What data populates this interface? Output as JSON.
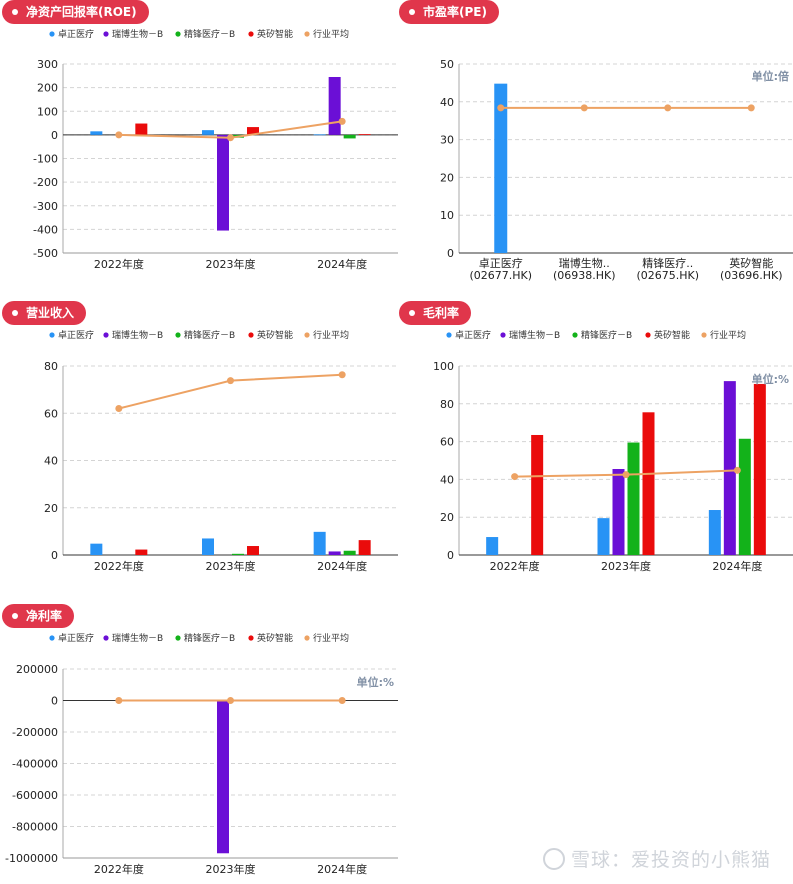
{
  "legend": [
    {
      "name": "卓正医疗",
      "color": "#2893f5"
    },
    {
      "name": "瑞博生物－B",
      "color": "#6b0fd6"
    },
    {
      "name": "精锋医疗－B",
      "color": "#13b21a"
    },
    {
      "name": "英矽智能",
      "color": "#ea0b0b"
    },
    {
      "name": "行业平均",
      "color": "#eda263"
    }
  ],
  "watermark": "雪球：爱投资的小熊猫",
  "chart_data": [
    {
      "id": "roe",
      "title": "净资产回报率(ROE)",
      "type": "bar",
      "unit_label": "",
      "categories": [
        "2022年度",
        "2023年度",
        "2024年度"
      ],
      "ylim": [
        -500,
        300
      ],
      "yticks": [
        "300",
        "200",
        "100",
        "0",
        "-100",
        "-200",
        "-300",
        "-400",
        "-500"
      ],
      "series": [
        {
          "name": "卓正医疗",
          "values": [
            15,
            20,
            2
          ]
        },
        {
          "name": "瑞博生物－B",
          "values": [
            null,
            -405,
            245
          ]
        },
        {
          "name": "精锋医疗－B",
          "values": [
            null,
            -12,
            -15
          ]
        },
        {
          "name": "英矽智能",
          "values": [
            48,
            33,
            3
          ]
        }
      ],
      "line": {
        "name": "行业平均",
        "values": [
          0,
          -12,
          57
        ]
      }
    },
    {
      "id": "pe",
      "title": "市盈率(PE)",
      "type": "bar",
      "unit_label": "单位:倍",
      "categories": [
        [
          "卓正医疗",
          "(02677.HK)"
        ],
        [
          "瑞博生物..",
          "(06938.HK)"
        ],
        [
          "精锋医疗..",
          "(02675.HK)"
        ],
        [
          "英矽智能",
          "(03696.HK)"
        ]
      ],
      "ylim": [
        0,
        50
      ],
      "yticks": [
        "50",
        "40",
        "30",
        "20",
        "10",
        "0"
      ],
      "values": [
        44.8,
        null,
        null,
        null
      ],
      "line": {
        "name": "行业平均",
        "values": [
          38.4,
          38.4,
          38.4,
          38.4
        ]
      }
    },
    {
      "id": "revenue",
      "title": "营业收入",
      "type": "bar",
      "unit_label": "",
      "categories": [
        "2022年度",
        "2023年度",
        "2024年度"
      ],
      "ylim": [
        0,
        80
      ],
      "yticks": [
        "80",
        "60",
        "40",
        "20",
        "0"
      ],
      "series": [
        {
          "name": "卓正医疗",
          "values": [
            4.8,
            7.0,
            9.8
          ]
        },
        {
          "name": "瑞博生物－B",
          "values": [
            null,
            null,
            1.5
          ]
        },
        {
          "name": "精锋医疗－B",
          "values": [
            null,
            0.5,
            1.8
          ]
        },
        {
          "name": "英矽智能",
          "values": [
            2.3,
            3.8,
            6.3
          ]
        }
      ],
      "line": {
        "name": "行业平均",
        "values": [
          62,
          73.8,
          76.3
        ]
      }
    },
    {
      "id": "gross_margin",
      "title": "毛利率",
      "type": "bar",
      "unit_label": "单位:%",
      "categories": [
        "2022年度",
        "2023年度",
        "2024年度"
      ],
      "ylim": [
        0,
        100
      ],
      "yticks": [
        "100",
        "80",
        "60",
        "40",
        "20",
        "0"
      ],
      "series": [
        {
          "name": "卓正医疗",
          "values": [
            9.5,
            19.5,
            23.8
          ]
        },
        {
          "name": "瑞博生物－B",
          "values": [
            null,
            45.5,
            92
          ]
        },
        {
          "name": "精锋医疗－B",
          "values": [
            null,
            59.5,
            61.5
          ]
        },
        {
          "name": "英矽智能",
          "values": [
            63.5,
            75.5,
            90.5
          ]
        }
      ],
      "line": {
        "name": "行业平均",
        "values": [
          41.5,
          42.5,
          44.8
        ]
      }
    },
    {
      "id": "net_margin",
      "title": "净利率",
      "type": "bar",
      "unit_label": "单位:%",
      "categories": [
        "2022年度",
        "2023年度",
        "2024年度"
      ],
      "ylim": [
        -1000000,
        200000
      ],
      "yticks": [
        "200000",
        "0",
        "-200000",
        "-400000",
        "-600000",
        "-800000",
        "-1000000"
      ],
      "series": [
        {
          "name": "卓正医疗",
          "values": [
            null,
            null,
            null
          ]
        },
        {
          "name": "瑞博生物－B",
          "values": [
            null,
            -970000,
            null
          ]
        },
        {
          "name": "精锋医疗－B",
          "values": [
            null,
            null,
            null
          ]
        },
        {
          "name": "英矽智能",
          "values": [
            null,
            null,
            null
          ]
        }
      ],
      "line": {
        "name": "行业平均",
        "values": [
          0,
          0,
          0
        ]
      }
    }
  ]
}
